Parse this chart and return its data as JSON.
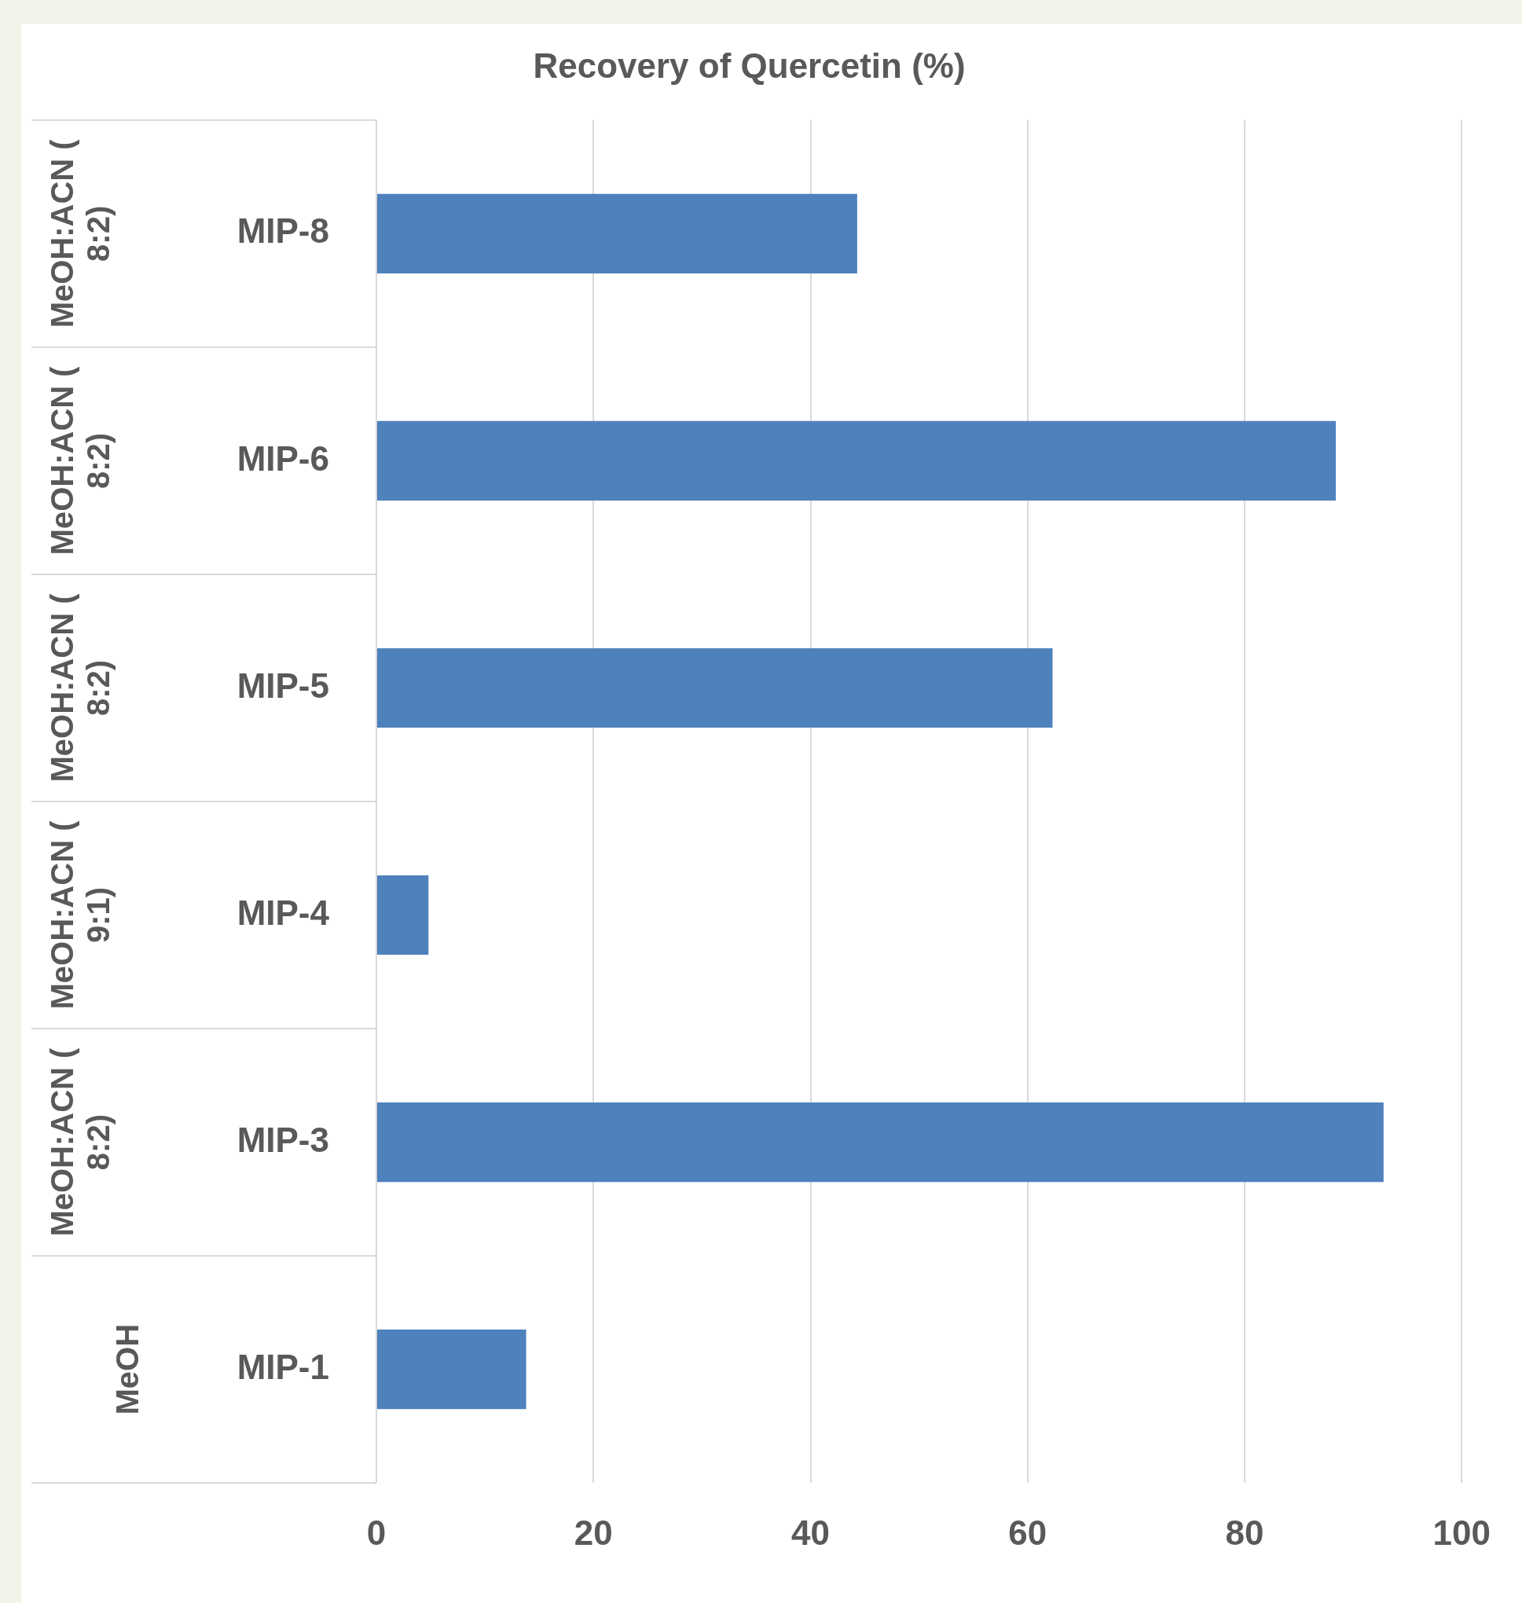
{
  "chart_data": {
    "type": "bar",
    "orientation": "horizontal",
    "title": "Recovery of Quercetin (%)",
    "categories": [
      "MIP-8",
      "MIP-6",
      "MIP-5",
      "MIP-4",
      "MIP-3",
      "MIP-1"
    ],
    "values": [
      44.3,
      88.4,
      62.3,
      4.8,
      92.8,
      13.8
    ],
    "color": "#4f81bd",
    "xlim": [
      0,
      100
    ],
    "xticks": [
      0,
      20,
      40,
      60,
      80,
      100
    ],
    "grid": "x",
    "legend": false,
    "annotations": [
      "MeOH:ACN (8:2)",
      "MeOH:ACN (8:2)",
      "MeOH:ACN (8:2)",
      "MeOH:ACN (9:1)",
      "MeOH:ACN (8:2)",
      "MeOH"
    ]
  }
}
